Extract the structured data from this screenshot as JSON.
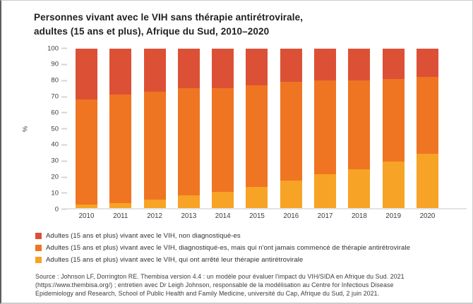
{
  "header": {
    "title_line1": "Personnes vivant avec le VIH sans thérapie antirétrovirale,",
    "title_line2": "adultes (15 ans et plus), Afrique du Sud, 2010–2020"
  },
  "chart_data": {
    "type": "bar",
    "stacked": true,
    "categories": [
      "2010",
      "2011",
      "2012",
      "2013",
      "2014",
      "2015",
      "2016",
      "2017",
      "2018",
      "2019",
      "2020"
    ],
    "series": [
      {
        "key": "arrete-tar",
        "name": "Adultes (15 ans et plus) vivant avec le VIH, qui ont arrêté leur thérapie antirétrovirale",
        "color": "#f7a325",
        "values": [
          2,
          3,
          5,
          8,
          10,
          13,
          17,
          21,
          24,
          29,
          34
        ]
      },
      {
        "key": "jamais-commence-tar",
        "name": "Adultes (15 ans et plus) vivant avec le VIH, diagnostiqué-es, mais qui n'ont jamais commencé de thérapie antirétrovirale",
        "color": "#ef7522",
        "values": [
          66,
          68,
          68,
          67,
          65,
          64,
          62,
          59,
          56,
          52,
          48
        ]
      },
      {
        "key": "non-diagnostiques",
        "name": "Adultes (15 ans et plus) vivant avec le VIH, non diagnostiqué-es",
        "color": "#dc5136",
        "values": [
          32,
          29,
          27,
          25,
          25,
          23,
          21,
          20,
          20,
          19,
          18
        ]
      }
    ],
    "xlabel": "",
    "ylabel": "%",
    "ylim": [
      0,
      100
    ],
    "ytick_step": 10,
    "grid": false,
    "legend_position": "bottom"
  },
  "source": {
    "lines": [
      "Source : Johnson LF, Dorrington RE. Thembisa version 4.4 : un modèle pour évaluer l'impact du VIH/SIDA en Afrique du Sud. 2021",
      "(https://www.thembisa.org/) ; entretien avec Dr Leigh Johnson, responsable de la modélisation au Centre for Infectious Disease",
      "Epidemiology and Research, School of Public Health and Family Medicine, université du Cap, Afrique du Sud, 2 juin 2021."
    ]
  }
}
